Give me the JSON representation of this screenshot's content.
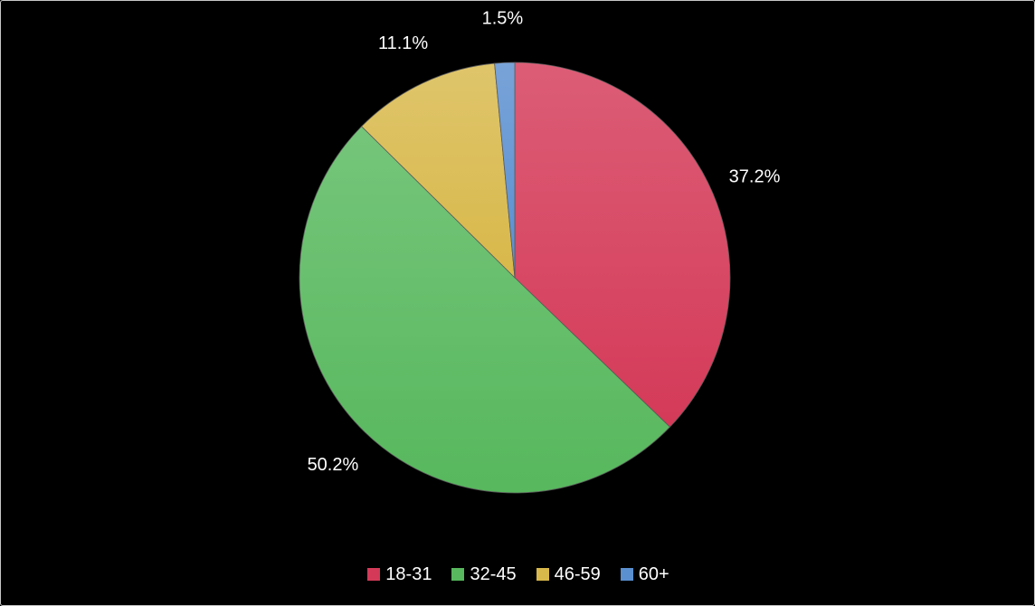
{
  "chart_data": {
    "type": "pie",
    "title": "",
    "categories": [
      "18-31",
      "32-45",
      "46-59",
      "60+"
    ],
    "values": [
      37.2,
      50.2,
      11.1,
      1.5
    ],
    "labels": [
      "37.2%",
      "50.2%",
      "11.1%",
      "1.5%"
    ],
    "colors": [
      "#d43a58",
      "#57b85d",
      "#d8b84a",
      "#5a8fd0"
    ],
    "start_angle": "12 o'clock",
    "direction": "clockwise",
    "legend_position": "bottom-center"
  }
}
